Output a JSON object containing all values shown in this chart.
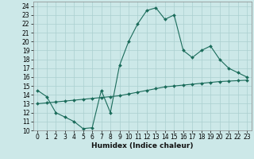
{
  "title": "",
  "xlabel": "Humidex (Indice chaleur)",
  "ylabel": "",
  "bg_color": "#cce8e8",
  "line_color": "#1a6b5a",
  "grid_color": "#aacfcf",
  "xlim": [
    -0.5,
    23.5
  ],
  "ylim": [
    10,
    24.5
  ],
  "yticks": [
    10,
    11,
    12,
    13,
    14,
    15,
    16,
    17,
    18,
    19,
    20,
    21,
    22,
    23,
    24
  ],
  "xticks": [
    0,
    1,
    2,
    3,
    4,
    5,
    6,
    7,
    8,
    9,
    10,
    11,
    12,
    13,
    14,
    15,
    16,
    17,
    18,
    19,
    20,
    21,
    22,
    23
  ],
  "line1_x": [
    0,
    1,
    2,
    3,
    4,
    5,
    6,
    7,
    8,
    9,
    10,
    11,
    12,
    13,
    14,
    15,
    16,
    17,
    18,
    19,
    20,
    21,
    22,
    23
  ],
  "line1_y": [
    14.5,
    13.8,
    12.0,
    11.5,
    11.0,
    10.2,
    10.3,
    14.5,
    12.0,
    17.3,
    20.0,
    22.0,
    23.5,
    23.8,
    22.5,
    23.0,
    19.0,
    18.2,
    19.0,
    19.5,
    18.0,
    17.0,
    16.5,
    16.0
  ],
  "line2_x": [
    0,
    1,
    2,
    3,
    4,
    5,
    6,
    7,
    8,
    9,
    10,
    11,
    12,
    13,
    14,
    15,
    16,
    17,
    18,
    19,
    20,
    21,
    22,
    23
  ],
  "line2_y": [
    13.0,
    13.1,
    13.2,
    13.3,
    13.4,
    13.5,
    13.6,
    13.7,
    13.8,
    13.9,
    14.1,
    14.3,
    14.5,
    14.7,
    14.9,
    15.0,
    15.1,
    15.2,
    15.3,
    15.4,
    15.5,
    15.55,
    15.6,
    15.65
  ],
  "tick_fontsize": 5.5,
  "xlabel_fontsize": 6.5,
  "marker_size": 2.0
}
